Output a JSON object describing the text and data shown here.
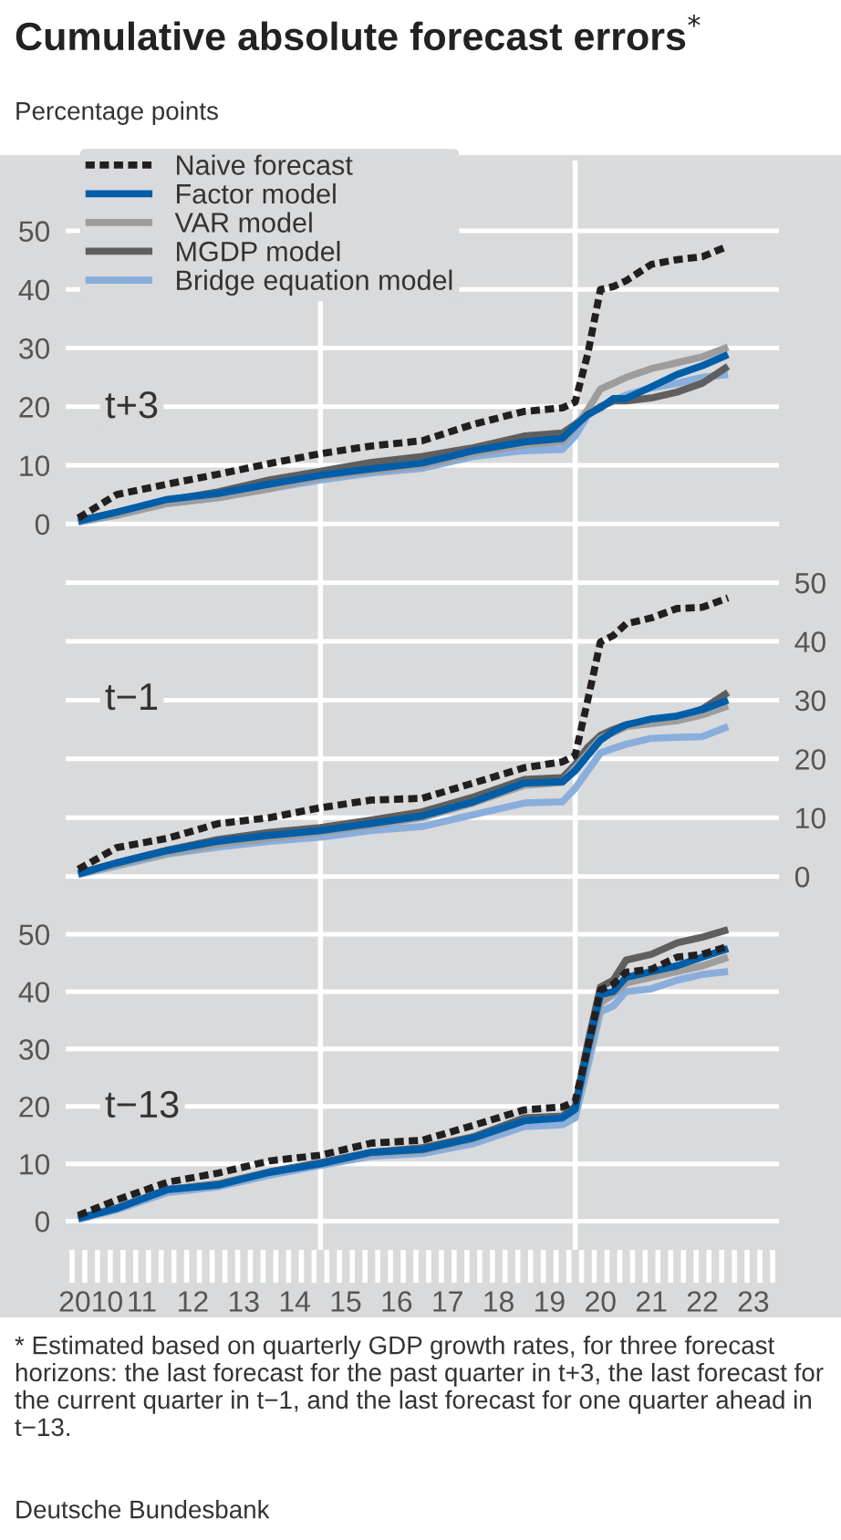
{
  "chart_data": [
    {
      "type": "line",
      "title": "Cumulative absolute forecast errors$^{*}$",
      "subtitle": "Percentage points",
      "annotations": [
        "t+3"
      ],
      "xlim": [
        "2010-01",
        "2024-01"
      ],
      "ylim": [
        -4,
        62
      ],
      "yticks": [
        0,
        10,
        20,
        30,
        40,
        50
      ],
      "grid": "y",
      "legend": "top left",
      "tick_labels": "y",
      "line_style": "solid",
      "x": [
        "2010-04",
        "2011-01",
        "2012-01",
        "2013-01",
        "2014-01",
        "2015-01",
        "2016-01",
        "2017-01",
        "2018-01",
        "2019-01",
        "2019-10",
        "2020-01",
        "2020-04",
        "2020-07",
        "2020-10",
        "2021-01",
        "2021-07",
        "2022-01",
        "2022-07",
        "2023-01"
      ],
      "ref_lines": [
        {
          "axis": "x",
          "value": "2015-01",
          "color": "#ffffff"
        },
        {
          "axis": "x",
          "value": "2020-01",
          "color": "#ffffff"
        }
      ],
      "series": [
        {
          "name": "Naive forecast",
          "color": "#231f20",
          "line_style": "dashed",
          "values": [
            1,
            5,
            6.8,
            8.5,
            10.3,
            12,
            13.3,
            14.2,
            17,
            19.2,
            19.8,
            20.8,
            29,
            40,
            40.5,
            41.5,
            44.3,
            45.1,
            45.6,
            47.4
          ]
        },
        {
          "name": "Factor model",
          "color": "#005ea8",
          "values": [
            0.5,
            2,
            4.2,
            5.2,
            6.8,
            8.3,
            9.4,
            10.4,
            12.5,
            14,
            14.6,
            16.7,
            18.7,
            19.8,
            21.4,
            21.4,
            23.4,
            25.5,
            27,
            28.9
          ]
        },
        {
          "name": "VAR model",
          "color": "#9d9d9d",
          "values": [
            0.5,
            1.5,
            3.5,
            4.5,
            6,
            8,
            9,
            10,
            12,
            13.5,
            14,
            16.5,
            19.5,
            23,
            24,
            25,
            26.5,
            27.5,
            28.5,
            30.2
          ]
        },
        {
          "name": "MGDP model",
          "color": "#5f5f5f",
          "values": [
            0.5,
            2,
            4,
            5.5,
            7.5,
            9,
            10.5,
            11.5,
            13,
            15,
            15.5,
            17,
            18.7,
            20,
            21,
            21,
            21.5,
            22.5,
            24,
            26.9
          ]
        },
        {
          "name": "Bridge equation model",
          "color": "#8aaedb",
          "values": [
            0.3,
            1.5,
            3.5,
            4.5,
            6,
            7.5,
            8.7,
            9.5,
            11.5,
            12.5,
            12.7,
            15,
            18.5,
            20,
            21,
            22,
            23.2,
            24,
            25,
            25.5
          ]
        }
      ]
    },
    {
      "type": "line",
      "annotations": [
        "t−1"
      ],
      "xlim": [
        "2010-01",
        "2024-01"
      ],
      "y2lim": [
        -3,
        56
      ],
      "y2ticks": [
        0,
        10,
        20,
        30,
        40,
        50
      ],
      "grid": "y",
      "tick_labels": "y",
      "line_style": "solid",
      "x": [
        "2010-04",
        "2011-01",
        "2012-01",
        "2013-01",
        "2014-01",
        "2015-01",
        "2016-01",
        "2017-01",
        "2018-01",
        "2019-01",
        "2019-10",
        "2020-01",
        "2020-04",
        "2020-07",
        "2020-10",
        "2021-01",
        "2021-07",
        "2022-01",
        "2022-07",
        "2023-01"
      ],
      "ref_lines": [
        {
          "axis": "x",
          "value": "2015-01",
          "color": "#ffffff"
        },
        {
          "axis": "x",
          "value": "2020-01",
          "color": "#ffffff"
        }
      ],
      "series": [
        {
          "color": "#231f20",
          "axis": "y2",
          "line_style": "dashed",
          "values": [
            1.2,
            4.9,
            6.5,
            9,
            10,
            11.7,
            13,
            13.3,
            15.9,
            18.5,
            19.5,
            20.6,
            30,
            39.9,
            41,
            43,
            44,
            45.6,
            45.8,
            47.4
          ]
        },
        {
          "color": "#005ea8",
          "axis": "y2",
          "values": [
            0.4,
            2.3,
            4.4,
            6,
            7,
            7.8,
            9,
            10.3,
            12.7,
            15.9,
            16.1,
            18,
            20.6,
            23.2,
            24.7,
            25.8,
            26.8,
            27.3,
            28.4,
            30
          ]
        },
        {
          "color": "#9d9d9d",
          "axis": "y2",
          "values": [
            0.4,
            2,
            4,
            5.5,
            6.5,
            7.5,
            8.7,
            10,
            12.5,
            15.5,
            16,
            18.5,
            21,
            23.5,
            24.5,
            25.5,
            26,
            26.5,
            27.5,
            29
          ]
        },
        {
          "color": "#5f5f5f",
          "axis": "y2",
          "values": [
            0.5,
            2.3,
            4.5,
            6.3,
            7.5,
            8.3,
            9.6,
            11,
            13.5,
            16.5,
            16.8,
            19,
            22,
            24,
            25,
            25.8,
            26.5,
            27,
            28.5,
            31.3
          ]
        },
        {
          "color": "#8aaedb",
          "axis": "y2",
          "values": [
            0.3,
            1.8,
            3.8,
            5,
            6,
            6.7,
            7.8,
            8.5,
            10.5,
            12.5,
            12.7,
            15,
            18,
            21,
            21.8,
            22.5,
            23.5,
            23.7,
            23.8,
            25.5
          ]
        }
      ]
    },
    {
      "type": "line",
      "annotations": [
        "t−13",
        "* Estimated based on quarterly GDP growth rates, for three forecast horizons: the last forecast for the past quarter in t+3, the last forecast for the current quarter in t−1, and the last forecast for one quarter ahead in t−13.",
        "Deutsche Bundesbank"
      ],
      "xlim": [
        "2010-01",
        "2024-01"
      ],
      "ylim": [
        -5,
        57
      ],
      "yticks": [
        0,
        10,
        20,
        30,
        40,
        50
      ],
      "grid": "y",
      "line_style": "solid",
      "xticks": [
        {
          "value": "2010-07",
          "label": "2010"
        },
        {
          "value": "2011-07",
          "label": "11"
        },
        {
          "value": "2012-07",
          "label": "12"
        },
        {
          "value": "2013-07",
          "label": "13"
        },
        {
          "value": "2014-07",
          "label": "14"
        },
        {
          "value": "2015-07",
          "label": "15"
        },
        {
          "value": "2016-07",
          "label": "16"
        },
        {
          "value": "2017-07",
          "label": "17"
        },
        {
          "value": "2018-07",
          "label": "18"
        },
        {
          "value": "2019-07",
          "label": "19"
        },
        {
          "value": "2020-07",
          "label": "20"
        },
        {
          "value": "2021-07",
          "label": "21"
        },
        {
          "value": "2022-07",
          "label": "22"
        },
        {
          "value": "2023-07",
          "label": "23"
        }
      ],
      "x": [
        "2010-04",
        "2011-01",
        "2012-01",
        "2013-01",
        "2014-01",
        "2015-01",
        "2016-01",
        "2017-01",
        "2018-01",
        "2019-01",
        "2019-10",
        "2020-01",
        "2020-04",
        "2020-07",
        "2020-10",
        "2021-01",
        "2021-07",
        "2022-01",
        "2022-07",
        "2023-01"
      ],
      "ref_lines": [
        {
          "axis": "x",
          "value": "2015-01",
          "color": "#ffffff"
        },
        {
          "axis": "x",
          "value": "2020-01",
          "color": "#ffffff"
        }
      ],
      "series": [
        {
          "color": "#231f20",
          "line_style": "dashed",
          "values": [
            1,
            3.7,
            6.8,
            8.4,
            10.5,
            11.5,
            13.6,
            14.1,
            16.7,
            19.4,
            19.9,
            20.9,
            30.3,
            40.3,
            41.3,
            43.4,
            43.9,
            46,
            46.5,
            47.9
          ]
        },
        {
          "color": "#005ea8",
          "values": [
            0.5,
            2.2,
            5.5,
            6.3,
            8.5,
            10,
            12,
            12.5,
            14.5,
            17.5,
            18,
            19.5,
            30,
            39.5,
            40,
            42.5,
            43.5,
            44.5,
            46,
            47.5
          ]
        },
        {
          "color": "#9d9d9d",
          "values": [
            0.5,
            2.3,
            5.5,
            6.3,
            8.5,
            10,
            11.8,
            12.3,
            14.3,
            17.5,
            18,
            19.3,
            29,
            38,
            39.5,
            41.5,
            42.5,
            43.5,
            44.5,
            46
          ]
        },
        {
          "color": "#5f5f5f",
          "values": [
            0.5,
            2.3,
            5.5,
            6.5,
            8.6,
            10.2,
            12,
            12.8,
            14.7,
            18,
            18.3,
            20,
            31,
            40.8,
            42,
            45.5,
            46.5,
            48.5,
            49.5,
            50.8
          ]
        },
        {
          "color": "#8aaedb",
          "values": [
            0.3,
            2,
            5,
            6,
            8,
            9.7,
            11.3,
            11.8,
            13.5,
            16.5,
            16.8,
            18,
            27,
            36.5,
            37.5,
            40,
            40.5,
            42,
            43,
            43.5
          ]
        }
      ]
    }
  ]
}
